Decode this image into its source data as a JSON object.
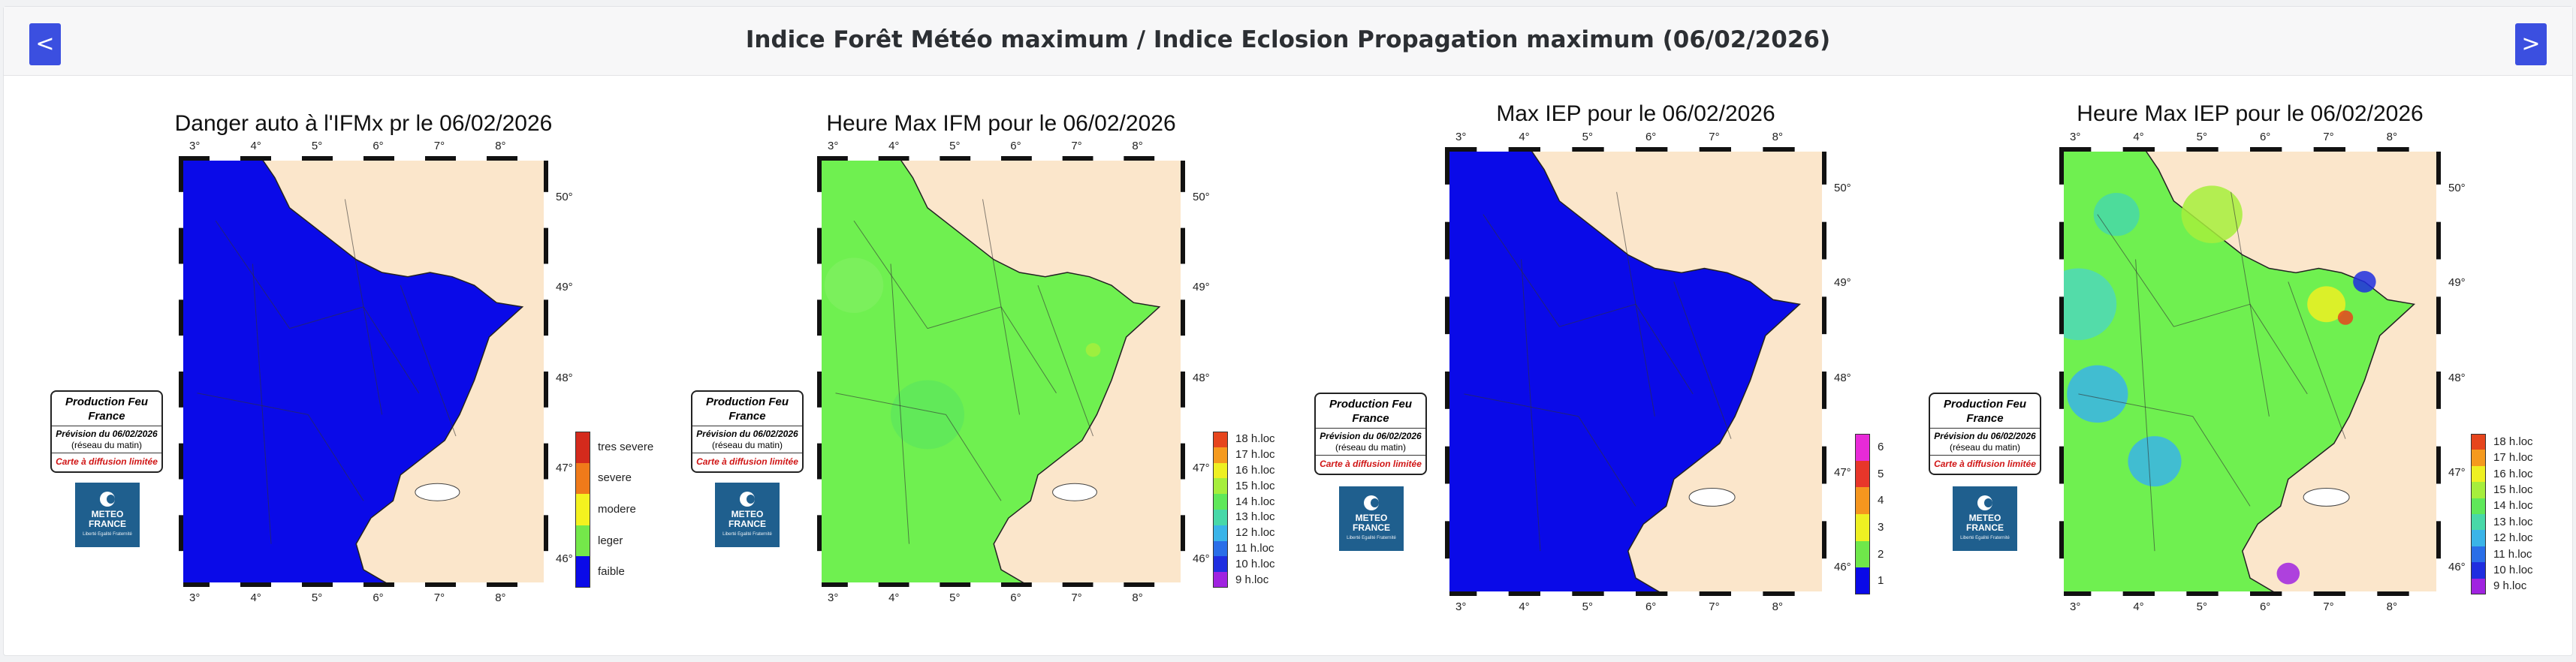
{
  "header": {
    "title": "Indice Forêt Météo maximum / Indice Eclosion Propagation maximum (06/02/2026)",
    "prev_label": "<",
    "next_label": ">"
  },
  "badge": {
    "line1": "Production Feu France",
    "line2": "Prévision du 06/02/2026",
    "line3": "(réseau du matin)",
    "line4": "Carte à diffusion limitée"
  },
  "logo": {
    "name": "METEO FRANCE",
    "tagline": "Liberté Égalité Fraternité"
  },
  "ticks": {
    "lon": [
      "3°",
      "4°",
      "5°",
      "6°",
      "7°",
      "8°"
    ],
    "lat": [
      "50°",
      "49°",
      "48°",
      "47°",
      "46°"
    ]
  },
  "panels": [
    {
      "title": "Danger auto à l'IFMx pr le 06/02/2026",
      "fill_color": "#0a0ae8",
      "legend": [
        {
          "label": "tres severe",
          "color": "#d42a1c"
        },
        {
          "label": "severe",
          "color": "#f07a1a"
        },
        {
          "label": "modere",
          "color": "#f4f21f"
        },
        {
          "label": "leger",
          "color": "#74e84a"
        },
        {
          "label": "faible",
          "color": "#0a0ae8"
        }
      ]
    },
    {
      "title": "Heure Max IFM pour le  06/02/2026",
      "fill_color": "#6ff050",
      "legend": [
        {
          "label": "18 h.loc",
          "color": "#e6451d"
        },
        {
          "label": "17 h.loc",
          "color": "#f59a1e"
        },
        {
          "label": "16 h.loc",
          "color": "#eef022"
        },
        {
          "label": "15 h.loc",
          "color": "#a6ee3c"
        },
        {
          "label": "14 h.loc",
          "color": "#5fe85a"
        },
        {
          "label": "13 h.loc",
          "color": "#48d8a8"
        },
        {
          "label": "12 h.loc",
          "color": "#3ab4e8"
        },
        {
          "label": "11 h.loc",
          "color": "#2a6ee8"
        },
        {
          "label": "10 h.loc",
          "color": "#1f2ee0"
        },
        {
          "label": "9 h.loc",
          "color": "#a023e0"
        }
      ]
    },
    {
      "title": "Max IEP pour le  06/02/2026",
      "fill_color": "#0a0ae8",
      "legend": [
        {
          "label": "6",
          "color": "#e82ad8"
        },
        {
          "label": "5",
          "color": "#e8362a"
        },
        {
          "label": "4",
          "color": "#f5961e"
        },
        {
          "label": "3",
          "color": "#eef022"
        },
        {
          "label": "2",
          "color": "#6fe84a"
        },
        {
          "label": "1",
          "color": "#0a0ae8"
        }
      ]
    },
    {
      "title": "Heure Max IEP pour le  06/02/2026",
      "fill_color": "#6ff050",
      "legend": [
        {
          "label": "18 h.loc",
          "color": "#e6451d"
        },
        {
          "label": "17 h.loc",
          "color": "#f59a1e"
        },
        {
          "label": "16 h.loc",
          "color": "#eef022"
        },
        {
          "label": "15 h.loc",
          "color": "#a6ee3c"
        },
        {
          "label": "14 h.loc",
          "color": "#5fe85a"
        },
        {
          "label": "13 h.loc",
          "color": "#48d8a8"
        },
        {
          "label": "12 h.loc",
          "color": "#3ab4e8"
        },
        {
          "label": "11 h.loc",
          "color": "#2a6ee8"
        },
        {
          "label": "10 h.loc",
          "color": "#1f2ee0"
        },
        {
          "label": "9 h.loc",
          "color": "#a023e0"
        }
      ]
    }
  ]
}
